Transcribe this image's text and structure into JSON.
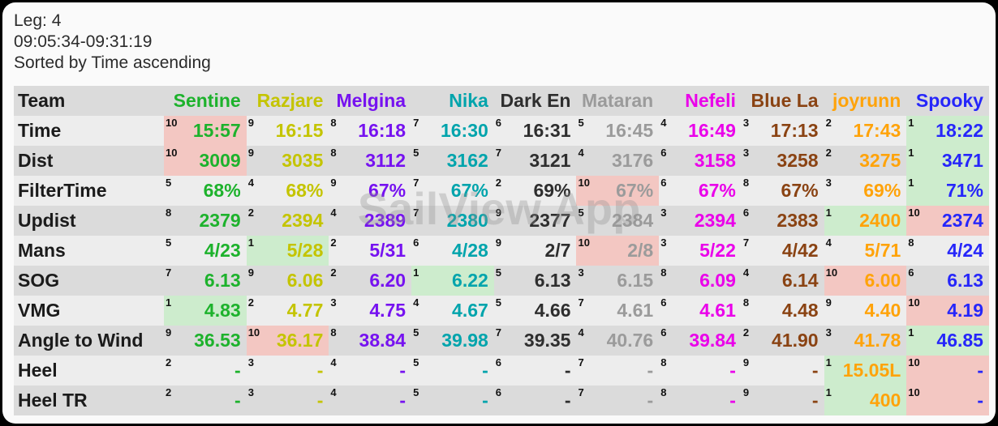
{
  "header": {
    "leg_label": "Leg: 4",
    "time_range": "09:05:34-09:31:19",
    "sort_status": "Sorted by Time ascending"
  },
  "watermark": "SailView App",
  "colors": {
    "highlight_best": "#cdeccd",
    "highlight_worst": "#f3c7c2",
    "row_light": "#ededed",
    "row_dark": "#dbdbdb"
  },
  "table": {
    "corner_label": "Team",
    "teams": [
      {
        "name": "Sentine",
        "color": "#1db22c"
      },
      {
        "name": "Razjare",
        "color": "#c4c400"
      },
      {
        "name": "Melgina",
        "color": "#7612f0"
      },
      {
        "name": "Nika",
        "color": "#00a4ac"
      },
      {
        "name": "Dark En",
        "color": "#2e2e2e"
      },
      {
        "name": "Mataran",
        "color": "#9b9b9b"
      },
      {
        "name": "Nefeli",
        "color": "#ea00ea"
      },
      {
        "name": "Blue La",
        "color": "#8a4313"
      },
      {
        "name": "joyrunn",
        "color": "#ffa30a"
      },
      {
        "name": "Spooky",
        "color": "#2626fa"
      }
    ],
    "rows": [
      {
        "label": "Time",
        "cells": [
          {
            "rank": "10",
            "value": "15:57",
            "hl": "red"
          },
          {
            "rank": "9",
            "value": "16:15"
          },
          {
            "rank": "8",
            "value": "16:18"
          },
          {
            "rank": "7",
            "value": "16:30"
          },
          {
            "rank": "6",
            "value": "16:31"
          },
          {
            "rank": "5",
            "value": "16:45"
          },
          {
            "rank": "4",
            "value": "16:49"
          },
          {
            "rank": "3",
            "value": "17:13"
          },
          {
            "rank": "2",
            "value": "17:43"
          },
          {
            "rank": "1",
            "value": "18:22",
            "hl": "green"
          }
        ]
      },
      {
        "label": "Dist",
        "cells": [
          {
            "rank": "10",
            "value": "3009",
            "hl": "red"
          },
          {
            "rank": "9",
            "value": "3035"
          },
          {
            "rank": "8",
            "value": "3112"
          },
          {
            "rank": "5",
            "value": "3162"
          },
          {
            "rank": "7",
            "value": "3121"
          },
          {
            "rank": "4",
            "value": "3176"
          },
          {
            "rank": "6",
            "value": "3158"
          },
          {
            "rank": "3",
            "value": "3258"
          },
          {
            "rank": "2",
            "value": "3275"
          },
          {
            "rank": "1",
            "value": "3471",
            "hl": "green"
          }
        ]
      },
      {
        "label": "FilterTime",
        "cells": [
          {
            "rank": "5",
            "value": "68%"
          },
          {
            "rank": "4",
            "value": "68%"
          },
          {
            "rank": "9",
            "value": "67%"
          },
          {
            "rank": "7",
            "value": "67%"
          },
          {
            "rank": "2",
            "value": "69%"
          },
          {
            "rank": "10",
            "value": "67%",
            "hl": "red"
          },
          {
            "rank": "6",
            "value": "67%"
          },
          {
            "rank": "8",
            "value": "67%"
          },
          {
            "rank": "3",
            "value": "69%"
          },
          {
            "rank": "1",
            "value": "71%",
            "hl": "green"
          }
        ]
      },
      {
        "label": "Updist",
        "cells": [
          {
            "rank": "8",
            "value": "2379"
          },
          {
            "rank": "2",
            "value": "2394"
          },
          {
            "rank": "4",
            "value": "2389"
          },
          {
            "rank": "7",
            "value": "2380"
          },
          {
            "rank": "9",
            "value": "2377"
          },
          {
            "rank": "5",
            "value": "2384"
          },
          {
            "rank": "3",
            "value": "2394"
          },
          {
            "rank": "6",
            "value": "2383"
          },
          {
            "rank": "1",
            "value": "2400",
            "hl": "green"
          },
          {
            "rank": "10",
            "value": "2374",
            "hl": "red"
          }
        ]
      },
      {
        "label": "Mans",
        "cells": [
          {
            "rank": "5",
            "value": "4/23"
          },
          {
            "rank": "1",
            "value": "5/28",
            "hl": "green"
          },
          {
            "rank": "2",
            "value": "5/31"
          },
          {
            "rank": "6",
            "value": "4/28"
          },
          {
            "rank": "9",
            "value": "2/7"
          },
          {
            "rank": "10",
            "value": "2/8",
            "hl": "red"
          },
          {
            "rank": "3",
            "value": "5/22"
          },
          {
            "rank": "7",
            "value": "4/42"
          },
          {
            "rank": "4",
            "value": "5/71"
          },
          {
            "rank": "8",
            "value": "4/24"
          }
        ]
      },
      {
        "label": "SOG",
        "cells": [
          {
            "rank": "7",
            "value": "6.13"
          },
          {
            "rank": "9",
            "value": "6.06"
          },
          {
            "rank": "2",
            "value": "6.20"
          },
          {
            "rank": "1",
            "value": "6.22",
            "hl": "green"
          },
          {
            "rank": "5",
            "value": "6.13"
          },
          {
            "rank": "3",
            "value": "6.15"
          },
          {
            "rank": "8",
            "value": "6.09"
          },
          {
            "rank": "4",
            "value": "6.14"
          },
          {
            "rank": "10",
            "value": "6.00",
            "hl": "red"
          },
          {
            "rank": "6",
            "value": "6.13"
          }
        ]
      },
      {
        "label": "VMG",
        "cells": [
          {
            "rank": "1",
            "value": "4.83",
            "hl": "green"
          },
          {
            "rank": "2",
            "value": "4.77"
          },
          {
            "rank": "3",
            "value": "4.75"
          },
          {
            "rank": "4",
            "value": "4.67"
          },
          {
            "rank": "5",
            "value": "4.66"
          },
          {
            "rank": "7",
            "value": "4.61"
          },
          {
            "rank": "6",
            "value": "4.61"
          },
          {
            "rank": "8",
            "value": "4.48"
          },
          {
            "rank": "9",
            "value": "4.40"
          },
          {
            "rank": "10",
            "value": "4.19",
            "hl": "red"
          }
        ]
      },
      {
        "label": "Angle to Wind",
        "cells": [
          {
            "rank": "9",
            "value": "36.53"
          },
          {
            "rank": "10",
            "value": "36.17",
            "hl": "red"
          },
          {
            "rank": "8",
            "value": "38.84"
          },
          {
            "rank": "5",
            "value": "39.98"
          },
          {
            "rank": "7",
            "value": "39.35"
          },
          {
            "rank": "4",
            "value": "40.76"
          },
          {
            "rank": "6",
            "value": "39.84"
          },
          {
            "rank": "2",
            "value": "41.90"
          },
          {
            "rank": "3",
            "value": "41.78"
          },
          {
            "rank": "1",
            "value": "46.85",
            "hl": "green"
          }
        ]
      },
      {
        "label": "Heel",
        "cells": [
          {
            "rank": "2",
            "value": "-"
          },
          {
            "rank": "3",
            "value": "-"
          },
          {
            "rank": "4",
            "value": "-"
          },
          {
            "rank": "5",
            "value": "-"
          },
          {
            "rank": "6",
            "value": "-"
          },
          {
            "rank": "7",
            "value": "-"
          },
          {
            "rank": "8",
            "value": "-"
          },
          {
            "rank": "9",
            "value": "-"
          },
          {
            "rank": "1",
            "value": "15.05L",
            "hl": "green"
          },
          {
            "rank": "10",
            "value": "-",
            "hl": "red"
          }
        ]
      },
      {
        "label": "Heel TR",
        "cells": [
          {
            "rank": "2",
            "value": "-"
          },
          {
            "rank": "3",
            "value": "-"
          },
          {
            "rank": "4",
            "value": "-"
          },
          {
            "rank": "5",
            "value": "-"
          },
          {
            "rank": "6",
            "value": "-"
          },
          {
            "rank": "7",
            "value": "-"
          },
          {
            "rank": "8",
            "value": "-"
          },
          {
            "rank": "9",
            "value": "-"
          },
          {
            "rank": "1",
            "value": "400",
            "hl": "green"
          },
          {
            "rank": "10",
            "value": "-",
            "hl": "red"
          }
        ]
      }
    ]
  }
}
